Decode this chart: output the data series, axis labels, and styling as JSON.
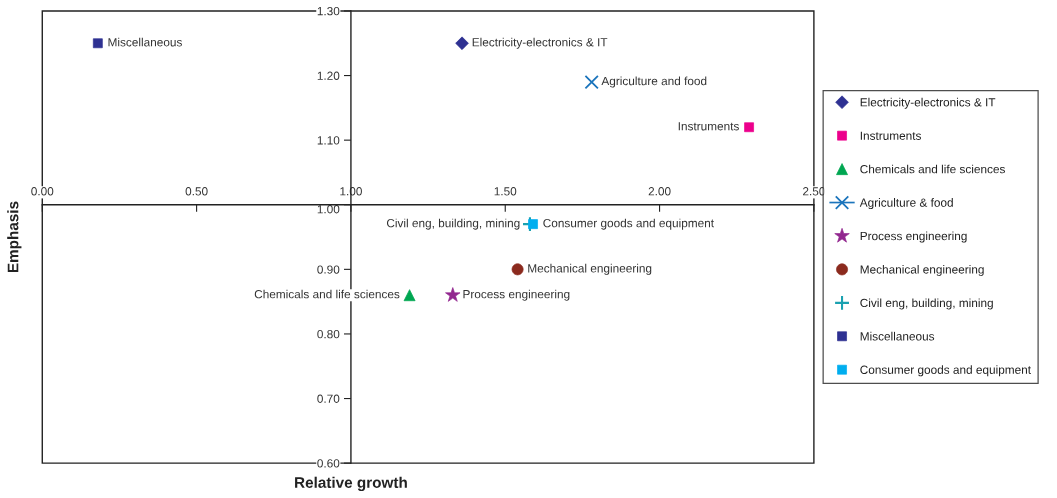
{
  "chart_data": {
    "type": "scatter",
    "xlabel": "Relative growth",
    "ylabel": "Emphasis",
    "xlim": [
      0,
      2.5
    ],
    "ylim": [
      0.6,
      1.3
    ],
    "xticks": [
      {
        "value": 0,
        "label": "0.00"
      },
      {
        "value": 0.5,
        "label": "0.50"
      },
      {
        "value": 1,
        "label": "1.00"
      },
      {
        "value": 1.5,
        "label": "1.50"
      },
      {
        "value": 2,
        "label": "2.00"
      },
      {
        "value": 2.5,
        "label": "2.50"
      }
    ],
    "yticks": [
      {
        "value": 0.6,
        "label": "0.60"
      },
      {
        "value": 0.7,
        "label": "0.70"
      },
      {
        "value": 0.8,
        "label": "0.80"
      },
      {
        "value": 0.9,
        "label": "0.90"
      },
      {
        "value": 1.0,
        "label": "1.00"
      },
      {
        "value": 1.1,
        "label": "1.10"
      },
      {
        "value": 1.2,
        "label": "1.20"
      },
      {
        "value": 1.3,
        "label": "1.30"
      }
    ],
    "legend": "right",
    "series": [
      {
        "name": "Electricity-electronics & IT",
        "color": "#2e3192",
        "marker": "diamond",
        "x": [
          1.36
        ],
        "values": [
          1.25
        ]
      },
      {
        "name": "Instruments",
        "color": "#ec008c",
        "marker": "square",
        "x": [
          2.29
        ],
        "values": [
          1.12
        ]
      },
      {
        "name": "Chemicals and life sciences",
        "color": "#00a651",
        "marker": "triangle",
        "x": [
          1.19
        ],
        "values": [
          0.86
        ]
      },
      {
        "name": "Agriculture & food",
        "color": "#1c75bc",
        "marker": "cross",
        "line_style": "solid",
        "x": [
          1.78
        ],
        "values": [
          1.19
        ]
      },
      {
        "name": "Process engineering",
        "color": "#92278f",
        "marker": "star",
        "x": [
          1.33
        ],
        "values": [
          0.86
        ]
      },
      {
        "name": "Mechanical engineering",
        "color": "#8b2a1e",
        "marker": "circle",
        "x": [
          1.54
        ],
        "values": [
          0.9
        ]
      },
      {
        "name": "Civil eng, building, mining",
        "color": "#1ba1b0",
        "marker": "plus",
        "x": [
          1.58
        ],
        "values": [
          0.97
        ]
      },
      {
        "name": "Miscellaneous",
        "color": "#2e3192",
        "marker": "square",
        "x": [
          0.18
        ],
        "values": [
          1.25
        ]
      },
      {
        "name": "Consumer goods and equipment",
        "color": "#00aeef",
        "marker": "square",
        "x": [
          1.59
        ],
        "values": [
          0.97
        ]
      }
    ],
    "annotations": [
      {
        "text": "Miscellaneous",
        "x": 0.18,
        "y": 1.25
      },
      {
        "text": "Electricity-electronics & IT",
        "x": 1.36,
        "y": 1.25
      },
      {
        "text": "Agriculture and food",
        "x": 1.78,
        "y": 1.19
      },
      {
        "text": "Instruments",
        "x": 2.29,
        "y": 1.12
      },
      {
        "text": "Consumer goods and equipment",
        "x": 1.59,
        "y": 0.97
      },
      {
        "text": "Civil eng, building, mining",
        "x": 1.58,
        "y": 0.97
      },
      {
        "text": "Mechanical engineering",
        "x": 1.54,
        "y": 0.9
      },
      {
        "text": "Process engineering",
        "x": 1.33,
        "y": 0.86
      },
      {
        "text": "Chemicals and life sciences",
        "x": 1.19,
        "y": 0.86
      }
    ]
  }
}
